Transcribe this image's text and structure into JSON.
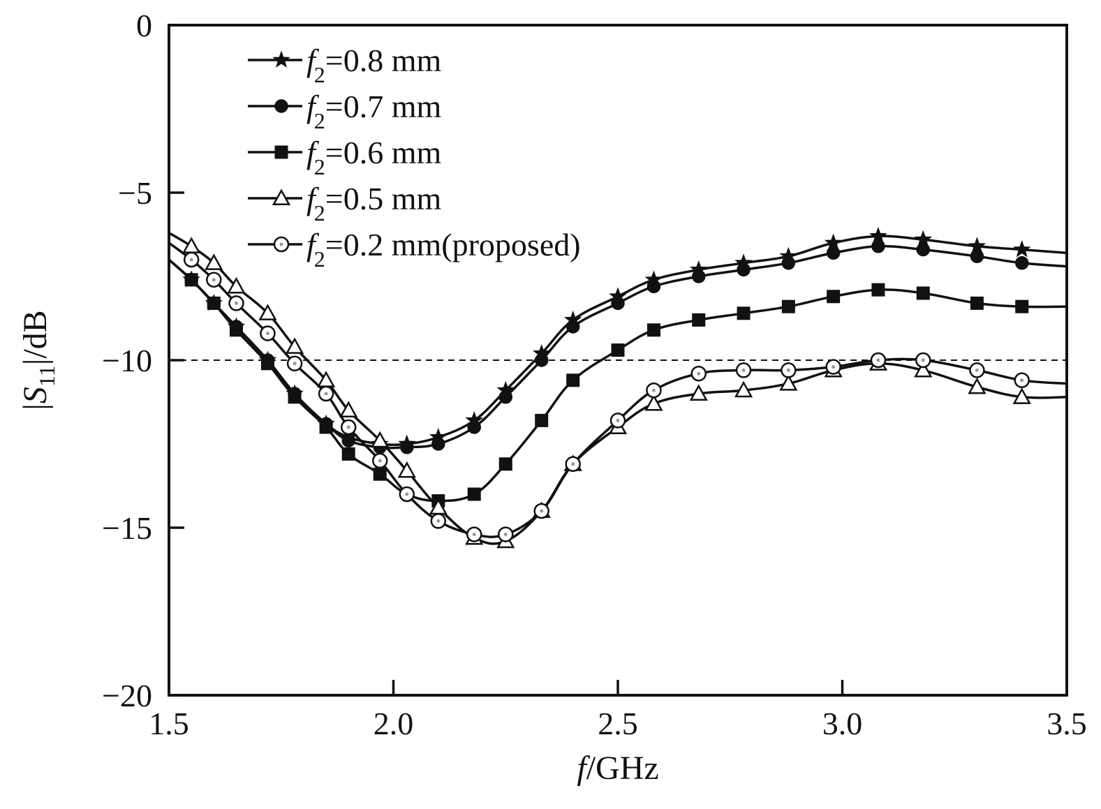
{
  "chart_data": {
    "type": "line",
    "xlabel": {
      "italic": "f",
      "rest": "/GHz"
    },
    "ylabel": {
      "pre": "|",
      "italic": "S",
      "sub": "11",
      "post": "|/dB"
    },
    "xlim": [
      1.5,
      3.5
    ],
    "ylim": [
      -20,
      0
    ],
    "x_ticks": [
      1.5,
      2.0,
      2.5,
      3.0,
      3.5
    ],
    "x_tick_labels": [
      "1.5",
      "2.0",
      "2.5",
      "3.0",
      "3.5"
    ],
    "y_ticks": [
      0,
      -5,
      -10,
      -15,
      -20
    ],
    "y_tick_labels": [
      "0",
      "−5",
      "−10",
      "−15",
      "−20"
    ],
    "reference_line": {
      "y": -10,
      "style": "dashed"
    },
    "grid": false,
    "legend_position": "top-left",
    "series": [
      {
        "name": "f2=0.8 mm",
        "legend": {
          "sym": "f",
          "sub": "2",
          "text": "=0.8 mm"
        },
        "marker": "star",
        "x": [
          1.5,
          1.55,
          1.6,
          1.65,
          1.72,
          1.78,
          1.85,
          1.9,
          1.97,
          2.03,
          2.1,
          2.18,
          2.25,
          2.33,
          2.4,
          2.5,
          2.58,
          2.68,
          2.78,
          2.88,
          2.98,
          3.08,
          3.18,
          3.3,
          3.4,
          3.5
        ],
        "y": [
          -7.0,
          -7.6,
          -8.3,
          -9.0,
          -10.0,
          -11.0,
          -11.9,
          -12.3,
          -12.5,
          -12.5,
          -12.3,
          -11.8,
          -10.9,
          -9.8,
          -8.8,
          -8.1,
          -7.6,
          -7.3,
          -7.1,
          -6.9,
          -6.5,
          -6.3,
          -6.4,
          -6.6,
          -6.7,
          -6.8
        ],
        "markers_x": [
          1.55,
          1.6,
          1.65,
          1.72,
          1.78,
          1.85,
          1.9,
          1.97,
          2.03,
          2.1,
          2.18,
          2.25,
          2.33,
          2.4,
          2.5,
          2.58,
          2.68,
          2.78,
          2.88,
          2.98,
          3.08,
          3.18,
          3.3,
          3.4
        ]
      },
      {
        "name": "f2=0.7 mm",
        "legend": {
          "sym": "f",
          "sub": "2",
          "text": "=0.7 mm"
        },
        "marker": "circle-filled",
        "x": [
          1.5,
          1.55,
          1.6,
          1.65,
          1.72,
          1.78,
          1.85,
          1.9,
          1.97,
          2.03,
          2.1,
          2.18,
          2.25,
          2.33,
          2.4,
          2.5,
          2.58,
          2.68,
          2.78,
          2.88,
          2.98,
          3.08,
          3.18,
          3.3,
          3.4,
          3.5
        ],
        "y": [
          -7.0,
          -7.6,
          -8.3,
          -9.0,
          -10.0,
          -11.0,
          -11.9,
          -12.4,
          -12.6,
          -12.6,
          -12.5,
          -12.0,
          -11.1,
          -10.0,
          -9.0,
          -8.3,
          -7.8,
          -7.5,
          -7.3,
          -7.1,
          -6.8,
          -6.6,
          -6.7,
          -6.9,
          -7.1,
          -7.2
        ],
        "markers_x": [
          1.55,
          1.6,
          1.65,
          1.72,
          1.78,
          1.85,
          1.9,
          1.97,
          2.03,
          2.1,
          2.18,
          2.25,
          2.33,
          2.4,
          2.5,
          2.58,
          2.68,
          2.78,
          2.88,
          2.98,
          3.08,
          3.18,
          3.3,
          3.4
        ]
      },
      {
        "name": "f2=0.6 mm",
        "legend": {
          "sym": "f",
          "sub": "2",
          "text": "=0.6 mm"
        },
        "marker": "square-filled",
        "x": [
          1.5,
          1.55,
          1.6,
          1.65,
          1.72,
          1.78,
          1.85,
          1.9,
          1.97,
          2.03,
          2.1,
          2.18,
          2.25,
          2.33,
          2.4,
          2.5,
          2.58,
          2.68,
          2.78,
          2.88,
          2.98,
          3.08,
          3.18,
          3.3,
          3.4,
          3.5
        ],
        "y": [
          -7.0,
          -7.6,
          -8.3,
          -9.1,
          -10.1,
          -11.1,
          -12.0,
          -12.8,
          -13.4,
          -14.0,
          -14.2,
          -14.0,
          -13.1,
          -11.8,
          -10.6,
          -9.7,
          -9.1,
          -8.8,
          -8.6,
          -8.4,
          -8.1,
          -7.9,
          -8.0,
          -8.3,
          -8.4,
          -8.4
        ],
        "markers_x": [
          1.55,
          1.6,
          1.65,
          1.72,
          1.78,
          1.85,
          1.9,
          1.97,
          2.1,
          2.18,
          2.25,
          2.33,
          2.4,
          2.5,
          2.58,
          2.68,
          2.78,
          2.88,
          2.98,
          3.08,
          3.18,
          3.3,
          3.4
        ]
      },
      {
        "name": "f2=0.5 mm",
        "legend": {
          "sym": "f",
          "sub": "2",
          "text": "=0.5 mm"
        },
        "marker": "triangle-open",
        "x": [
          1.5,
          1.55,
          1.6,
          1.65,
          1.72,
          1.78,
          1.85,
          1.9,
          1.97,
          2.03,
          2.1,
          2.18,
          2.25,
          2.33,
          2.4,
          2.5,
          2.58,
          2.68,
          2.78,
          2.88,
          2.98,
          3.08,
          3.18,
          3.3,
          3.4,
          3.5
        ],
        "y": [
          -6.2,
          -6.6,
          -7.1,
          -7.8,
          -8.6,
          -9.6,
          -10.6,
          -11.5,
          -12.4,
          -13.3,
          -14.4,
          -15.3,
          -15.4,
          -14.5,
          -13.1,
          -12.0,
          -11.3,
          -11.0,
          -10.9,
          -10.7,
          -10.3,
          -10.1,
          -10.3,
          -10.8,
          -11.1,
          -11.1
        ],
        "markers_x": [
          1.55,
          1.6,
          1.65,
          1.72,
          1.78,
          1.85,
          1.9,
          1.97,
          2.03,
          2.1,
          2.18,
          2.25,
          2.33,
          2.4,
          2.5,
          2.58,
          2.68,
          2.78,
          2.88,
          2.98,
          3.08,
          3.18,
          3.3,
          3.4
        ]
      },
      {
        "name": "f2=0.2 mm(proposed)",
        "legend": {
          "sym": "f",
          "sub": "2",
          "text": "=0.2 mm(proposed)"
        },
        "marker": "circle-open",
        "x": [
          1.5,
          1.55,
          1.6,
          1.65,
          1.72,
          1.78,
          1.85,
          1.9,
          1.97,
          2.03,
          2.1,
          2.18,
          2.25,
          2.33,
          2.4,
          2.5,
          2.58,
          2.68,
          2.78,
          2.88,
          2.98,
          3.08,
          3.18,
          3.3,
          3.4,
          3.5
        ],
        "y": [
          -6.5,
          -7.0,
          -7.6,
          -8.3,
          -9.2,
          -10.1,
          -11.0,
          -12.0,
          -13.0,
          -14.0,
          -14.8,
          -15.2,
          -15.2,
          -14.5,
          -13.1,
          -11.8,
          -10.9,
          -10.4,
          -10.3,
          -10.3,
          -10.2,
          -10.0,
          -10.0,
          -10.3,
          -10.6,
          -10.7
        ],
        "markers_x": [
          1.55,
          1.6,
          1.65,
          1.72,
          1.78,
          1.85,
          1.9,
          1.97,
          2.03,
          2.1,
          2.18,
          2.25,
          2.33,
          2.4,
          2.5,
          2.58,
          2.68,
          2.78,
          2.88,
          2.98,
          3.08,
          3.18,
          3.3,
          3.4
        ]
      }
    ]
  }
}
